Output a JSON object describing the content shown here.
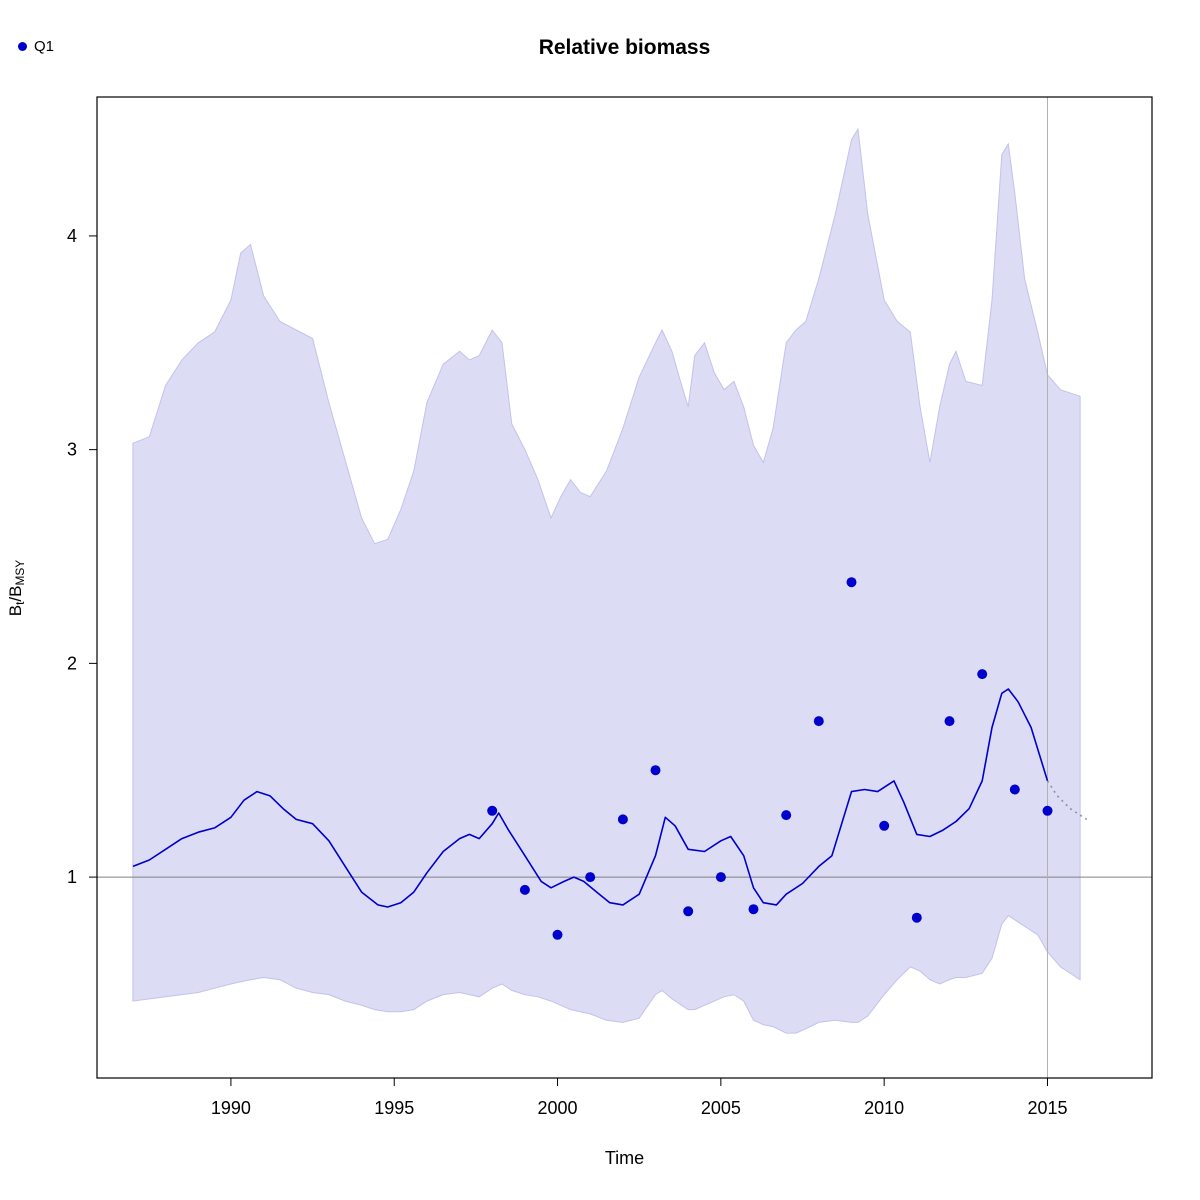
{
  "chart_data": {
    "type": "line",
    "title": "Relative biomass",
    "xlabel": "Time",
    "ylabel": "Bt/BMSY",
    "ylabel_parts": [
      {
        "text": "B",
        "sub": false
      },
      {
        "text": "t",
        "sub": true
      },
      {
        "text": "/",
        "sub": false
      },
      {
        "text": "B",
        "sub": false
      },
      {
        "text": "MSY",
        "sub": true
      }
    ],
    "xlim": [
      1985.9,
      2018.2
    ],
    "ylim": [
      0.06,
      4.65
    ],
    "xticks": [
      1990,
      1995,
      2000,
      2005,
      2010,
      2015
    ],
    "yticks": [
      1,
      2,
      3,
      4
    ],
    "grid": false,
    "legend": [
      {
        "label": "Q1",
        "marker": "point",
        "color": "#0000cd",
        "position": "top-left"
      }
    ],
    "reference_lines": {
      "horizontal_y": 1,
      "horizontal_color": "#808080",
      "vertical_x": 2015,
      "vertical_color": "#b0b0b0"
    },
    "band": {
      "name": "95% confidence band",
      "fill": "#dcdcf4",
      "edge": "#c3c2ec",
      "points": [
        [
          1987.0,
          0.42,
          3.03
        ],
        [
          1987.5,
          0.43,
          3.06
        ],
        [
          1988.0,
          0.44,
          3.3
        ],
        [
          1988.5,
          0.45,
          3.42
        ],
        [
          1989.0,
          0.46,
          3.5
        ],
        [
          1989.5,
          0.48,
          3.55
        ],
        [
          1990.0,
          0.5,
          3.7
        ],
        [
          1990.3,
          0.51,
          3.92
        ],
        [
          1990.6,
          0.52,
          3.96
        ],
        [
          1991.0,
          0.53,
          3.72
        ],
        [
          1991.5,
          0.52,
          3.6
        ],
        [
          1992.0,
          0.48,
          3.56
        ],
        [
          1992.5,
          0.46,
          3.52
        ],
        [
          1993.0,
          0.45,
          3.22
        ],
        [
          1993.5,
          0.42,
          2.95
        ],
        [
          1994.0,
          0.4,
          2.68
        ],
        [
          1994.4,
          0.38,
          2.56
        ],
        [
          1994.8,
          0.37,
          2.58
        ],
        [
          1995.2,
          0.37,
          2.72
        ],
        [
          1995.6,
          0.38,
          2.9
        ],
        [
          1996.0,
          0.42,
          3.22
        ],
        [
          1996.5,
          0.45,
          3.4
        ],
        [
          1997.0,
          0.46,
          3.46
        ],
        [
          1997.3,
          0.45,
          3.42
        ],
        [
          1997.6,
          0.44,
          3.44
        ],
        [
          1998.0,
          0.48,
          3.56
        ],
        [
          1998.3,
          0.5,
          3.5
        ],
        [
          1998.6,
          0.47,
          3.12
        ],
        [
          1999.0,
          0.45,
          3.0
        ],
        [
          1999.4,
          0.44,
          2.86
        ],
        [
          1999.8,
          0.42,
          2.68
        ],
        [
          2000.1,
          0.4,
          2.78
        ],
        [
          2000.4,
          0.38,
          2.86
        ],
        [
          2000.7,
          0.37,
          2.8
        ],
        [
          2001.0,
          0.36,
          2.78
        ],
        [
          2001.5,
          0.33,
          2.9
        ],
        [
          2002.0,
          0.32,
          3.1
        ],
        [
          2002.5,
          0.34,
          3.34
        ],
        [
          2003.0,
          0.45,
          3.5
        ],
        [
          2003.2,
          0.47,
          3.56
        ],
        [
          2003.5,
          0.43,
          3.46
        ],
        [
          2003.8,
          0.4,
          3.3
        ],
        [
          2004.0,
          0.38,
          3.2
        ],
        [
          2004.2,
          0.38,
          3.44
        ],
        [
          2004.5,
          0.4,
          3.5
        ],
        [
          2004.8,
          0.42,
          3.36
        ],
        [
          2005.1,
          0.44,
          3.28
        ],
        [
          2005.4,
          0.45,
          3.32
        ],
        [
          2005.7,
          0.42,
          3.2
        ],
        [
          2006.0,
          0.33,
          3.02
        ],
        [
          2006.3,
          0.31,
          2.94
        ],
        [
          2006.6,
          0.3,
          3.1
        ],
        [
          2007.0,
          0.27,
          3.5
        ],
        [
          2007.3,
          0.27,
          3.56
        ],
        [
          2007.6,
          0.29,
          3.6
        ],
        [
          2008.0,
          0.32,
          3.8
        ],
        [
          2008.5,
          0.33,
          4.1
        ],
        [
          2009.0,
          0.32,
          4.45
        ],
        [
          2009.2,
          0.32,
          4.5
        ],
        [
          2009.5,
          0.35,
          4.1
        ],
        [
          2010.0,
          0.45,
          3.7
        ],
        [
          2010.4,
          0.52,
          3.6
        ],
        [
          2010.8,
          0.58,
          3.55
        ],
        [
          2011.1,
          0.56,
          3.2
        ],
        [
          2011.4,
          0.52,
          2.94
        ],
        [
          2011.7,
          0.5,
          3.2
        ],
        [
          2012.0,
          0.52,
          3.4
        ],
        [
          2012.2,
          0.53,
          3.46
        ],
        [
          2012.5,
          0.53,
          3.32
        ],
        [
          2013.0,
          0.55,
          3.3
        ],
        [
          2013.3,
          0.62,
          3.7
        ],
        [
          2013.6,
          0.78,
          4.38
        ],
        [
          2013.8,
          0.82,
          4.43
        ],
        [
          2014.0,
          0.8,
          4.2
        ],
        [
          2014.3,
          0.77,
          3.8
        ],
        [
          2014.7,
          0.73,
          3.55
        ],
        [
          2015.0,
          0.65,
          3.35
        ],
        [
          2015.4,
          0.58,
          3.28
        ],
        [
          2016.0,
          0.52,
          3.25
        ]
      ]
    },
    "series": [
      {
        "name": "estimate",
        "type": "line",
        "color": "#0000cd",
        "dotted": false,
        "points": [
          [
            1987.0,
            1.05
          ],
          [
            1987.5,
            1.08
          ],
          [
            1988.0,
            1.13
          ],
          [
            1988.5,
            1.18
          ],
          [
            1989.0,
            1.21
          ],
          [
            1989.5,
            1.23
          ],
          [
            1990.0,
            1.28
          ],
          [
            1990.4,
            1.36
          ],
          [
            1990.8,
            1.4
          ],
          [
            1991.2,
            1.38
          ],
          [
            1991.6,
            1.32
          ],
          [
            1992.0,
            1.27
          ],
          [
            1992.5,
            1.25
          ],
          [
            1993.0,
            1.17
          ],
          [
            1993.5,
            1.05
          ],
          [
            1994.0,
            0.93
          ],
          [
            1994.5,
            0.87
          ],
          [
            1994.8,
            0.86
          ],
          [
            1995.2,
            0.88
          ],
          [
            1995.6,
            0.93
          ],
          [
            1996.0,
            1.02
          ],
          [
            1996.5,
            1.12
          ],
          [
            1997.0,
            1.18
          ],
          [
            1997.3,
            1.2
          ],
          [
            1997.6,
            1.18
          ],
          [
            1998.0,
            1.25
          ],
          [
            1998.2,
            1.3
          ],
          [
            1998.5,
            1.22
          ],
          [
            1999.0,
            1.1
          ],
          [
            1999.5,
            0.98
          ],
          [
            1999.8,
            0.95
          ],
          [
            2000.2,
            0.98
          ],
          [
            2000.5,
            1.0
          ],
          [
            2000.8,
            0.98
          ],
          [
            2001.2,
            0.93
          ],
          [
            2001.6,
            0.88
          ],
          [
            2002.0,
            0.87
          ],
          [
            2002.5,
            0.92
          ],
          [
            2003.0,
            1.1
          ],
          [
            2003.3,
            1.28
          ],
          [
            2003.6,
            1.24
          ],
          [
            2004.0,
            1.13
          ],
          [
            2004.5,
            1.12
          ],
          [
            2005.0,
            1.17
          ],
          [
            2005.3,
            1.19
          ],
          [
            2005.7,
            1.1
          ],
          [
            2006.0,
            0.95
          ],
          [
            2006.3,
            0.88
          ],
          [
            2006.7,
            0.87
          ],
          [
            2007.0,
            0.92
          ],
          [
            2007.5,
            0.97
          ],
          [
            2008.0,
            1.05
          ],
          [
            2008.4,
            1.1
          ],
          [
            2008.7,
            1.25
          ],
          [
            2009.0,
            1.4
          ],
          [
            2009.4,
            1.41
          ],
          [
            2009.8,
            1.4
          ],
          [
            2010.0,
            1.42
          ],
          [
            2010.3,
            1.45
          ],
          [
            2010.6,
            1.35
          ],
          [
            2011.0,
            1.2
          ],
          [
            2011.4,
            1.19
          ],
          [
            2011.8,
            1.22
          ],
          [
            2012.2,
            1.26
          ],
          [
            2012.6,
            1.32
          ],
          [
            2013.0,
            1.45
          ],
          [
            2013.3,
            1.7
          ],
          [
            2013.6,
            1.86
          ],
          [
            2013.8,
            1.88
          ],
          [
            2014.1,
            1.82
          ],
          [
            2014.5,
            1.7
          ],
          [
            2015.0,
            1.45
          ]
        ]
      },
      {
        "name": "forecast",
        "type": "line",
        "color": "#8e8ea8",
        "dotted": true,
        "points": [
          [
            2015.0,
            1.45
          ],
          [
            2015.3,
            1.38
          ],
          [
            2015.7,
            1.32
          ],
          [
            2016.2,
            1.27
          ]
        ]
      },
      {
        "name": "Q1 observations",
        "type": "scatter",
        "color": "#0000cd",
        "points": [
          [
            1998,
            1.31
          ],
          [
            1999,
            0.94
          ],
          [
            2000,
            0.73
          ],
          [
            2001,
            1.0
          ],
          [
            2002,
            1.27
          ],
          [
            2003,
            1.5
          ],
          [
            2004,
            0.84
          ],
          [
            2005,
            1.0
          ],
          [
            2006,
            0.85
          ],
          [
            2007,
            1.29
          ],
          [
            2008,
            1.73
          ],
          [
            2009,
            2.38
          ],
          [
            2010,
            1.24
          ],
          [
            2011,
            0.81
          ],
          [
            2012,
            1.73
          ],
          [
            2013,
            1.95
          ],
          [
            2014,
            1.41
          ],
          [
            2015,
            1.31
          ]
        ]
      }
    ]
  }
}
